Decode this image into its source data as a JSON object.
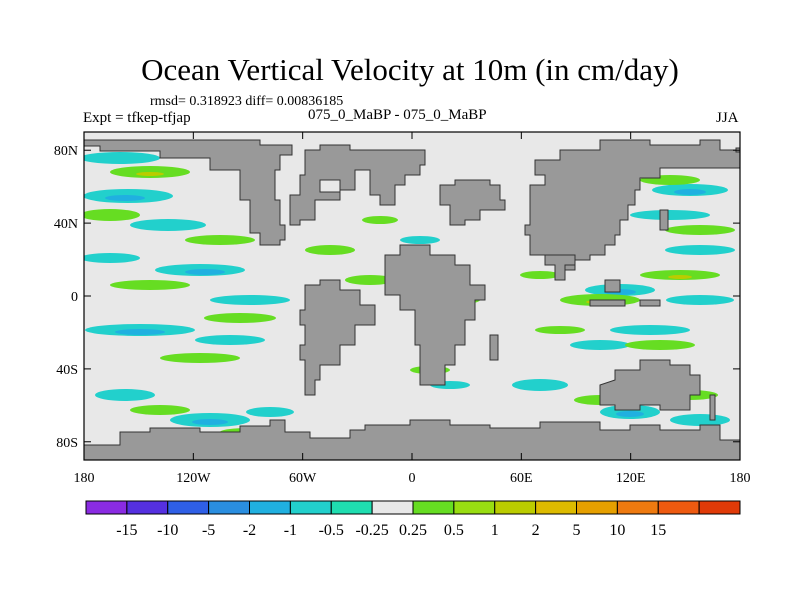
{
  "title": "Ocean Vertical Velocity at 10m (in cm/day)",
  "stats": "rmsd= 0.318923 diff= 0.00836185",
  "left_label": "Expt = tfkep-tfjap",
  "center_label": "075_0_MaBP - 075_0_MaBP",
  "right_label": "JJA",
  "x_ticks": [
    {
      "lon": -180,
      "label": "180"
    },
    {
      "lon": -120,
      "label": "120W"
    },
    {
      "lon": -60,
      "label": "60W"
    },
    {
      "lon": 0,
      "label": "0"
    },
    {
      "lon": 60,
      "label": "60E"
    },
    {
      "lon": 120,
      "label": "120E"
    },
    {
      "lon": 180,
      "label": "180"
    }
  ],
  "y_ticks": [
    {
      "lat": 80,
      "label": "80N"
    },
    {
      "lat": 40,
      "label": "40N"
    },
    {
      "lat": 0,
      "label": "0"
    },
    {
      "lat": -40,
      "label": "40S"
    },
    {
      "lat": -80,
      "label": "80S"
    }
  ],
  "colorbar": {
    "colors": [
      "#8a2be2",
      "#5530e0",
      "#2f5fe6",
      "#2a8ee0",
      "#20b0e0",
      "#22d0cc",
      "#1fddb0",
      "#e8e8e8",
      "#66dd22",
      "#99dd11",
      "#bbcc00",
      "#ddbb00",
      "#e6a000",
      "#ee7a10",
      "#ee5a10",
      "#e03a08"
    ],
    "labels": [
      "-15",
      "-10",
      "-5",
      "-2",
      "-1",
      "-0.5",
      "-0.25",
      "0.25",
      "0.5",
      "1",
      "2",
      "5",
      "10",
      "15"
    ]
  },
  "colors": {
    "ocean_background": "#e8e8e8",
    "land": "#999999",
    "coast": "#333333"
  }
}
